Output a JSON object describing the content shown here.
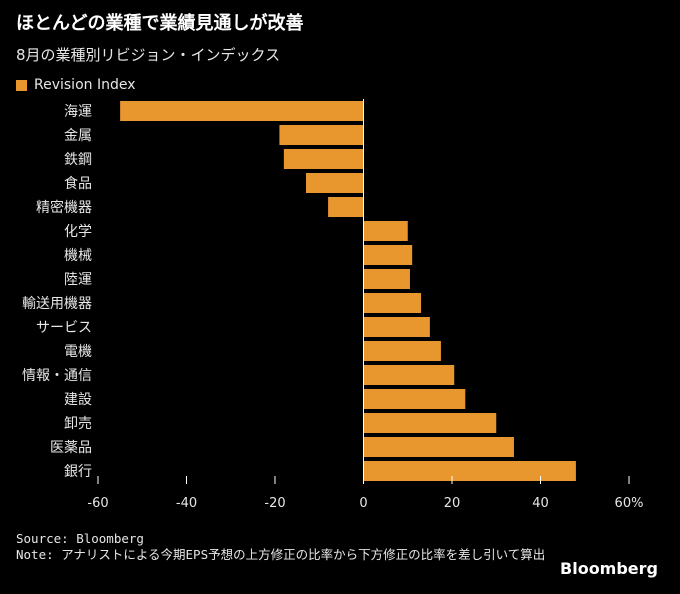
{
  "header": {
    "title": "ほとんどの業種で業績見通しが改善",
    "subtitle": "8月の業種別リビジョン・インデックス"
  },
  "footer": {
    "source": "Source: Bloomberg",
    "note": "Note: アナリストによる今期EPS予想の上方修正の比率から下方修正の比率を差し引いて算出",
    "brand": "Bloomberg"
  },
  "colors": {
    "background": "#000000",
    "bar": "#E8962E",
    "axis": "#ffffff",
    "text": "#e6e6e6"
  },
  "chart_data": {
    "type": "bar",
    "orientation": "horizontal",
    "title": "ほとんどの業種で業績見通しが改善",
    "subtitle": "8月の業種別リビジョン・インデックス",
    "series": [
      {
        "name": "Revision Index",
        "values": [
          -55,
          -19,
          -18,
          -13,
          -8,
          10,
          11,
          10.5,
          13,
          15,
          17.5,
          20.5,
          23,
          30,
          34,
          48
        ]
      }
    ],
    "categories": [
      "海運",
      "金属",
      "鉄鋼",
      "食品",
      "精密機器",
      "化学",
      "機械",
      "陸運",
      "輸送用機器",
      "サービス",
      "電機",
      "情報・通信",
      "建設",
      "卸売",
      "医薬品",
      "銀行"
    ],
    "xlim": [
      -60,
      60
    ],
    "xticks": [
      -60,
      -40,
      -20,
      0,
      20,
      40,
      60
    ],
    "xtick_labels": [
      "-60",
      "-40",
      "-20",
      "0",
      "20",
      "40",
      "60%"
    ],
    "grid": false,
    "legend": "top-left"
  }
}
